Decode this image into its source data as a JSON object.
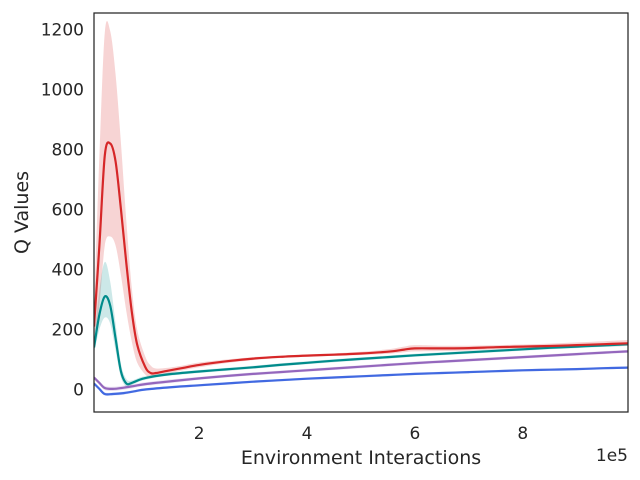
{
  "chart_data": {
    "type": "line",
    "title": "",
    "xlabel": "Environment Interactions",
    "ylabel": "Q Values",
    "x_offset_label": "1e5",
    "xlim": [
      0.05,
      9.95
    ],
    "ylim": [
      -75,
      1255
    ],
    "xticks": [
      2,
      4,
      6,
      8
    ],
    "xtick_labels": [
      "2",
      "4",
      "6",
      "8"
    ],
    "yticks": [
      0,
      200,
      400,
      600,
      800,
      1000,
      1200
    ],
    "ytick_labels": [
      "0",
      "200",
      "400",
      "600",
      "800",
      "1000",
      "1200"
    ],
    "grid": false,
    "legend": "none",
    "series": [
      {
        "color": "#d62728",
        "x": [
          0.05,
          0.15,
          0.25,
          0.35,
          0.45,
          0.55,
          0.65,
          0.75,
          0.85,
          1.0,
          1.1,
          1.2,
          1.4,
          1.7,
          2.0,
          2.5,
          3.0,
          3.5,
          4.0,
          4.5,
          5.0,
          5.5,
          5.8,
          6.0,
          6.5,
          7.0,
          7.5,
          8.0,
          8.5,
          9.0,
          9.5,
          9.95
        ],
        "y": [
          210,
          480,
          780,
          820,
          760,
          600,
          420,
          260,
          150,
          75,
          55,
          55,
          62,
          72,
          82,
          94,
          103,
          109,
          113,
          116,
          120,
          126,
          133,
          137,
          137,
          138,
          141,
          143,
          145,
          148,
          151,
          154
        ],
        "band_upper": [
          260,
          780,
          1190,
          1195,
          1050,
          820,
          560,
          340,
          200,
          110,
          80,
          70,
          72,
          80,
          90,
          100,
          108,
          113,
          117,
          121,
          126,
          134,
          143,
          148,
          146,
          146,
          148,
          150,
          153,
          157,
          161,
          165
        ],
        "band_lower": [
          170,
          280,
          480,
          510,
          480,
          380,
          260,
          160,
          90,
          50,
          40,
          44,
          52,
          64,
          74,
          88,
          98,
          105,
          109,
          112,
          115,
          119,
          124,
          127,
          128,
          130,
          134,
          137,
          139,
          141,
          143,
          145
        ]
      },
      {
        "color": "#008b8b",
        "x": [
          0.05,
          0.15,
          0.25,
          0.35,
          0.45,
          0.55,
          0.65,
          0.75,
          0.9,
          1.0,
          1.2,
          1.5,
          2.0,
          2.5,
          3.0,
          3.5,
          4.0,
          4.5,
          5.0,
          5.5,
          6.0,
          6.5,
          7.0,
          7.5,
          8.0,
          8.5,
          9.0,
          9.5,
          9.95
        ],
        "y": [
          140,
          250,
          310,
          280,
          170,
          60,
          20,
          22,
          33,
          38,
          45,
          52,
          60,
          67,
          74,
          82,
          89,
          96,
          102,
          108,
          114,
          119,
          124,
          129,
          134,
          139,
          143,
          147,
          151
        ],
        "band_upper": [
          165,
          330,
          425,
          360,
          220,
          85,
          35,
          30,
          40,
          44,
          50,
          57,
          65,
          72,
          79,
          87,
          94,
          101,
          107,
          113,
          119,
          124,
          129,
          134,
          139,
          144,
          148,
          152,
          156
        ],
        "band_lower": [
          120,
          200,
          240,
          220,
          130,
          40,
          10,
          15,
          27,
          32,
          40,
          47,
          55,
          62,
          69,
          77,
          84,
          91,
          97,
          103,
          109,
          114,
          119,
          124,
          129,
          134,
          138,
          142,
          146
        ]
      },
      {
        "color": "#9467bd",
        "x": [
          0.05,
          0.15,
          0.25,
          0.4,
          0.6,
          0.8,
          1.0,
          1.5,
          2.0,
          2.5,
          3.0,
          3.5,
          4.0,
          4.5,
          5.0,
          5.5,
          6.0,
          6.5,
          7.0,
          7.5,
          8.0,
          8.5,
          9.0,
          9.5,
          9.95
        ],
        "y": [
          40,
          22,
          5,
          2,
          6,
          12,
          18,
          28,
          37,
          45,
          52,
          58,
          64,
          70,
          76,
          82,
          88,
          93,
          98,
          103,
          108,
          113,
          118,
          123,
          127
        ],
        "band_upper": [
          45,
          28,
          12,
          9,
          13,
          18,
          24,
          34,
          42,
          50,
          57,
          63,
          69,
          75,
          81,
          87,
          93,
          98,
          103,
          108,
          113,
          118,
          123,
          128,
          132
        ],
        "band_lower": [
          35,
          16,
          -2,
          -5,
          -1,
          6,
          12,
          22,
          32,
          40,
          47,
          53,
          59,
          65,
          71,
          77,
          83,
          88,
          93,
          98,
          103,
          108,
          113,
          118,
          122
        ]
      },
      {
        "color": "#4169e1",
        "x": [
          0.05,
          0.15,
          0.25,
          0.4,
          0.6,
          0.8,
          1.0,
          1.5,
          2.0,
          2.5,
          3.0,
          3.5,
          4.0,
          4.5,
          5.0,
          5.5,
          6.0,
          6.5,
          7.0,
          7.5,
          8.0,
          8.5,
          9.0,
          9.5,
          9.95
        ],
        "y": [
          20,
          2,
          -15,
          -15,
          -12,
          -6,
          0,
          8,
          14,
          20,
          26,
          31,
          36,
          40,
          44,
          48,
          52,
          55,
          58,
          61,
          64,
          66,
          68,
          71,
          73
        ],
        "band_upper": [
          24,
          6,
          -10,
          -10,
          -7,
          -2,
          4,
          12,
          18,
          24,
          30,
          35,
          40,
          44,
          48,
          52,
          56,
          59,
          62,
          65,
          68,
          70,
          72,
          75,
          77
        ],
        "band_lower": [
          16,
          -2,
          -20,
          -20,
          -17,
          -10,
          -4,
          4,
          10,
          16,
          22,
          27,
          32,
          36,
          40,
          44,
          48,
          51,
          54,
          57,
          60,
          62,
          64,
          67,
          69
        ]
      }
    ]
  }
}
